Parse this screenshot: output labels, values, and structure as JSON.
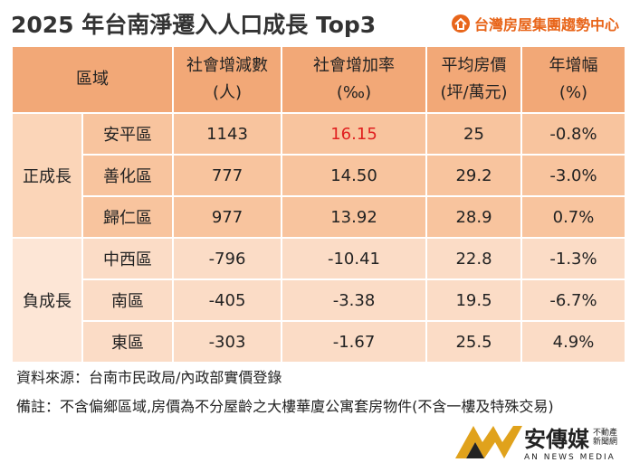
{
  "header": {
    "title": "2025 年台南淨遷入人口成長 Top3",
    "source_logo": "台灣房屋集團趨勢中心"
  },
  "table": {
    "headers": [
      {
        "lines": [
          "區域"
        ]
      },
      {
        "lines": [
          "社會增減數",
          "(人)"
        ]
      },
      {
        "lines": [
          "社會增加率",
          "(‰)"
        ]
      },
      {
        "lines": [
          "平均房價",
          "(坪/萬元)"
        ]
      },
      {
        "lines": [
          "年增幅",
          "(%)"
        ]
      }
    ],
    "groups": [
      {
        "label": "正成長",
        "rows": [
          [
            "安平區",
            "1143",
            "16.15",
            "25",
            "-0.8%"
          ],
          [
            "善化區",
            "777",
            "14.50",
            "29.2",
            "-3.0%"
          ],
          [
            "歸仁區",
            "977",
            "13.92",
            "28.9",
            "0.7%"
          ]
        ]
      },
      {
        "label": "負成長",
        "rows": [
          [
            "中西區",
            "-796",
            "-10.41",
            "22.8",
            "-1.3%"
          ],
          [
            "南區",
            "-405",
            "-3.38",
            "19.5",
            "-6.7%"
          ],
          [
            "東區",
            "-303",
            "-1.67",
            "25.5",
            "4.9%"
          ]
        ]
      }
    ]
  },
  "footer": {
    "source": "資料來源：台南市民政局/內政部實價登錄",
    "note": "備註：不含偏鄉區域,房價為不分屋齡之大樓華廈公寓套房物件(不含一樓及特殊交易)",
    "brand": {
      "name": "安傳媒",
      "tag1": "不動產",
      "tag2": "新聞網",
      "english": "AN NEWS MEDIA"
    }
  }
}
